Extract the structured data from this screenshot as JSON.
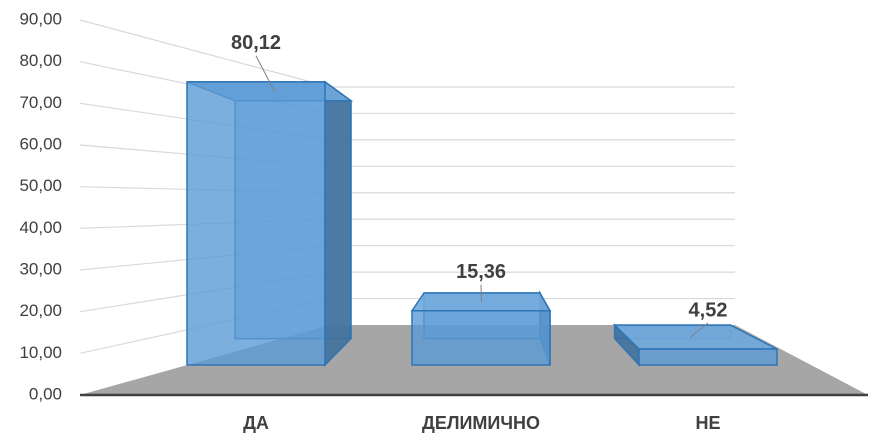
{
  "chart_data": {
    "type": "bar3d",
    "categories": [
      "ДА",
      "ДЕЛИМИЧНО",
      "НЕ"
    ],
    "values": [
      80.12,
      15.36,
      4.52
    ],
    "value_labels": [
      "80,12",
      "15,36",
      "4,52"
    ],
    "color": "#5b9bd5",
    "ylim": [
      0,
      90
    ],
    "yticks": [
      {
        "value": 0,
        "label": "0,00"
      },
      {
        "value": 10,
        "label": "10,00"
      },
      {
        "value": 20,
        "label": "20,00"
      },
      {
        "value": 30,
        "label": "30,00"
      },
      {
        "value": 40,
        "label": "40,00"
      },
      {
        "value": 50,
        "label": "50,00"
      },
      {
        "value": 60,
        "label": "60,00"
      },
      {
        "value": 70,
        "label": "70,00"
      },
      {
        "value": 80,
        "label": "80,00"
      },
      {
        "value": 90,
        "label": "90,00"
      }
    ],
    "grid": true
  }
}
